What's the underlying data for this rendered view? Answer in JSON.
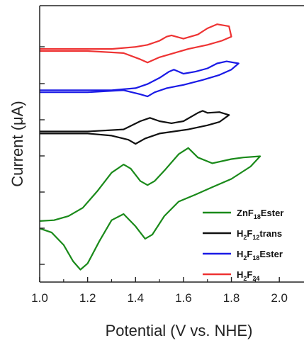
{
  "chart_data": {
    "type": "line",
    "xlabel": "Potential (V vs. NHE)",
    "ylabel": "Current (μA)",
    "xlim": [
      1.0,
      2.1
    ],
    "x_ticks": [
      "1.0",
      "1.2",
      "1.4",
      "1.6",
      "1.8",
      "2.0"
    ],
    "grid": false,
    "legend_position": "bottom-right",
    "series": [
      {
        "name": "ZnF18Ester",
        "legend": {
          "base": "ZnF",
          "sub1": "18",
          "mid": "Ester",
          "sub2": "",
          "tail": ""
        },
        "color": "#1a8a1a",
        "offset": -3.3,
        "points": [
          [
            1.0,
            1.0
          ],
          [
            1.05,
            0.9
          ],
          [
            1.1,
            0.6
          ],
          [
            1.14,
            0.2
          ],
          [
            1.17,
            0.0
          ],
          [
            1.2,
            0.15
          ],
          [
            1.25,
            0.7
          ],
          [
            1.3,
            1.2
          ],
          [
            1.35,
            1.35
          ],
          [
            1.4,
            1.05
          ],
          [
            1.44,
            0.75
          ],
          [
            1.47,
            0.85
          ],
          [
            1.52,
            1.3
          ],
          [
            1.58,
            1.65
          ],
          [
            1.65,
            1.82
          ],
          [
            1.72,
            2.0
          ],
          [
            1.8,
            2.2
          ],
          [
            1.88,
            2.5
          ],
          [
            1.92,
            2.75
          ],
          [
            1.85,
            2.72
          ],
          [
            1.8,
            2.68
          ],
          [
            1.72,
            2.58
          ],
          [
            1.66,
            2.72
          ],
          [
            1.62,
            2.95
          ],
          [
            1.58,
            2.8
          ],
          [
            1.52,
            2.4
          ],
          [
            1.48,
            2.15
          ],
          [
            1.45,
            2.05
          ],
          [
            1.42,
            2.15
          ],
          [
            1.38,
            2.45
          ],
          [
            1.35,
            2.55
          ],
          [
            1.3,
            2.35
          ],
          [
            1.24,
            1.9
          ],
          [
            1.18,
            1.5
          ],
          [
            1.12,
            1.3
          ],
          [
            1.06,
            1.2
          ],
          [
            1.0,
            1.18
          ]
        ]
      },
      {
        "name": "H2F12trans",
        "legend": {
          "base": "H",
          "sub1": "2",
          "mid": "F",
          "sub2": "12",
          "tail": "trans"
        },
        "color": "#111111",
        "offset": 0.0,
        "points": [
          [
            1.0,
            0.0
          ],
          [
            1.2,
            0.0
          ],
          [
            1.3,
            -0.05
          ],
          [
            1.37,
            -0.15
          ],
          [
            1.4,
            -0.25
          ],
          [
            1.44,
            -0.12
          ],
          [
            1.5,
            0.0
          ],
          [
            1.56,
            0.05
          ],
          [
            1.62,
            0.1
          ],
          [
            1.7,
            0.2
          ],
          [
            1.75,
            0.28
          ],
          [
            1.79,
            0.45
          ],
          [
            1.75,
            0.52
          ],
          [
            1.7,
            0.5
          ],
          [
            1.68,
            0.55
          ],
          [
            1.66,
            0.5
          ],
          [
            1.6,
            0.3
          ],
          [
            1.55,
            0.25
          ],
          [
            1.5,
            0.3
          ],
          [
            1.46,
            0.38
          ],
          [
            1.42,
            0.3
          ],
          [
            1.35,
            0.1
          ],
          [
            1.2,
            0.05
          ],
          [
            1.0,
            0.05
          ]
        ]
      },
      {
        "name": "H2F18Ester",
        "legend": {
          "base": "H",
          "sub1": "2",
          "mid": "F",
          "sub2": "18",
          "tail": "Ester"
        },
        "color": "#1a1ae6",
        "offset": 1.0,
        "points": [
          [
            1.0,
            0.0
          ],
          [
            1.2,
            0.0
          ],
          [
            1.35,
            0.05
          ],
          [
            1.42,
            -0.05
          ],
          [
            1.45,
            -0.1
          ],
          [
            1.48,
            0.0
          ],
          [
            1.53,
            0.1
          ],
          [
            1.6,
            0.18
          ],
          [
            1.68,
            0.3
          ],
          [
            1.75,
            0.42
          ],
          [
            1.8,
            0.55
          ],
          [
            1.83,
            0.7
          ],
          [
            1.78,
            0.75
          ],
          [
            1.74,
            0.7
          ],
          [
            1.7,
            0.58
          ],
          [
            1.65,
            0.5
          ],
          [
            1.6,
            0.45
          ],
          [
            1.56,
            0.55
          ],
          [
            1.54,
            0.5
          ],
          [
            1.5,
            0.35
          ],
          [
            1.45,
            0.2
          ],
          [
            1.4,
            0.1
          ],
          [
            1.3,
            0.05
          ],
          [
            1.0,
            0.05
          ]
        ]
      },
      {
        "name": "H2F24",
        "legend": {
          "base": "H",
          "sub1": "2",
          "mid": "F",
          "sub2": "24",
          "tail": ""
        },
        "color": "#ee3333",
        "offset": 2.0,
        "points": [
          [
            1.0,
            0.0
          ],
          [
            1.2,
            0.0
          ],
          [
            1.35,
            -0.05
          ],
          [
            1.42,
            -0.2
          ],
          [
            1.45,
            -0.28
          ],
          [
            1.5,
            -0.15
          ],
          [
            1.56,
            -0.05
          ],
          [
            1.62,
            0.05
          ],
          [
            1.7,
            0.15
          ],
          [
            1.76,
            0.25
          ],
          [
            1.8,
            0.35
          ],
          [
            1.79,
            0.6
          ],
          [
            1.74,
            0.65
          ],
          [
            1.7,
            0.55
          ],
          [
            1.66,
            0.4
          ],
          [
            1.6,
            0.3
          ],
          [
            1.55,
            0.38
          ],
          [
            1.53,
            0.35
          ],
          [
            1.5,
            0.25
          ],
          [
            1.45,
            0.15
          ],
          [
            1.4,
            0.1
          ],
          [
            1.3,
            0.05
          ],
          [
            1.0,
            0.05
          ]
        ]
      }
    ]
  }
}
